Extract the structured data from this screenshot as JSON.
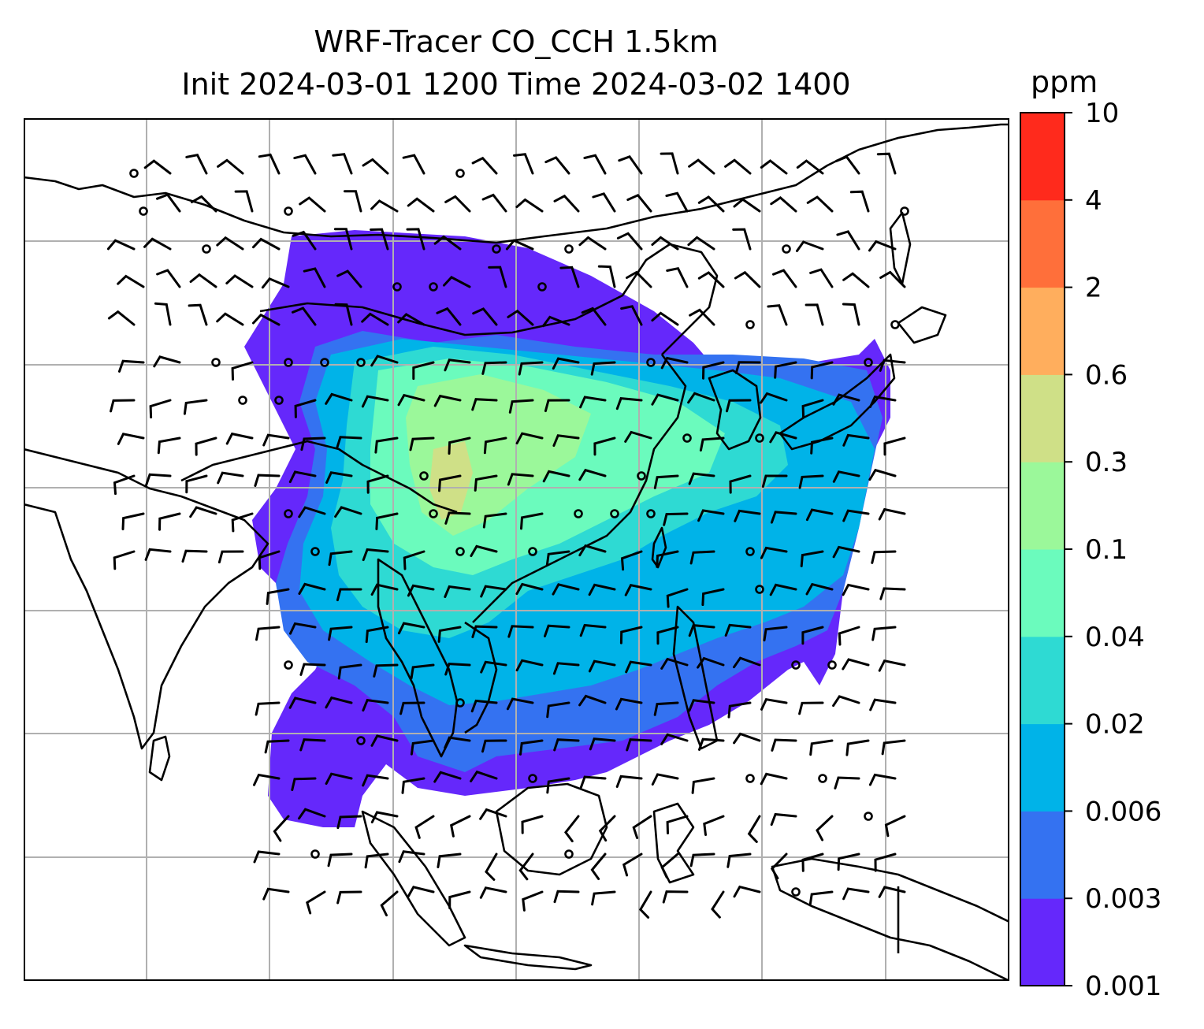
{
  "title": {
    "line1": "WRF-Tracer CO_CCH 1.5km",
    "line2": "Init 2024-03-01 1200 Time 2024-03-02 1400"
  },
  "colorbar": {
    "unit": "ppm",
    "ticks": [
      "0.001",
      "0.003",
      "0.006",
      "0.02",
      "0.04",
      "0.1",
      "0.3",
      "0.6",
      "2",
      "4",
      "10"
    ],
    "colors": [
      "#6528fb",
      "#3472f1",
      "#00b3e8",
      "#2edad3",
      "#6bfbbd",
      "#9bf89a",
      "#cfe087",
      "#ffae5d",
      "#ff6f3a",
      "#ff2a1c"
    ]
  },
  "map": {
    "land_line_color": "#000000",
    "gridline_color": "#b0b0b0",
    "wind_barb_color": "#000000",
    "tracer_levels_present": [
      "0.001-0.003",
      "0.003-0.006",
      "0.006-0.02",
      "0.02-0.04",
      "0.04-0.1",
      "0.1-0.3",
      "0.3-0.6"
    ]
  }
}
